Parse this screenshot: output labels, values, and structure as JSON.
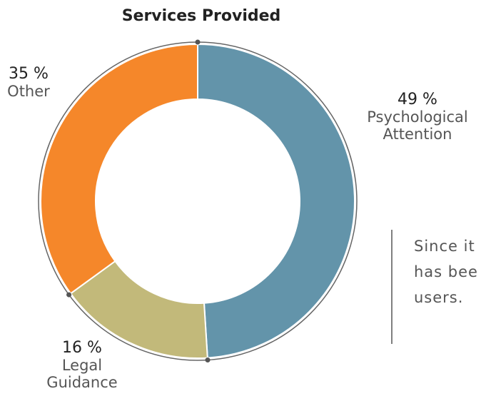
{
  "chart_data": {
    "type": "donut",
    "title": "Services Provided",
    "categories": [
      "Psychological Attention",
      "Legal Guidance",
      "Other"
    ],
    "values": [
      49,
      16,
      35
    ],
    "value_labels": [
      "49 %",
      "16 %",
      "35 %"
    ],
    "colors": [
      "#6394aa",
      "#c2b97a",
      "#f5872a"
    ],
    "annotation": [
      "Since it",
      "has bee",
      "users."
    ]
  }
}
